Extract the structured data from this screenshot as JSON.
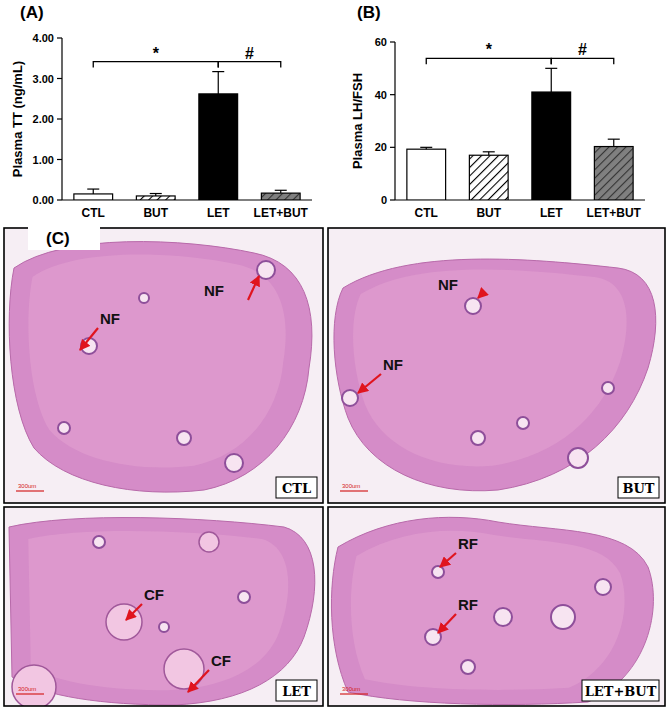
{
  "chart_data": [
    {
      "type": "bar",
      "title": "(A)",
      "y_label": "Plasma TT (ng/mL)",
      "categories": [
        "CTL",
        "BUT",
        "LET",
        "LET+BUT"
      ],
      "values": [
        0.15,
        0.1,
        2.62,
        0.17
      ],
      "errors": [
        0.12,
        0.06,
        0.55,
        0.07
      ],
      "colors": [
        "#ffffff",
        "#ffffff",
        "#000000",
        "#808080"
      ],
      "ylim": [
        0,
        4
      ],
      "yticks": [
        {
          "value": 0,
          "label": "0.00"
        },
        {
          "value": 1,
          "label": "1.00"
        },
        {
          "value": 2,
          "label": "2.00"
        },
        {
          "value": 3,
          "label": "3.00"
        },
        {
          "value": 4,
          "label": "4.00"
        }
      ],
      "annotations": [
        {
          "text": "*",
          "from": 0,
          "to": 2
        },
        {
          "text": "#",
          "from": 2,
          "to": 3
        }
      ]
    },
    {
      "type": "bar",
      "title": "(B)",
      "y_label": "Plasma LH/FSH",
      "categories": [
        "CTL",
        "BUT",
        "LET",
        "LET+BUT"
      ],
      "values": [
        19.3,
        17,
        41,
        20.3
      ],
      "errors": [
        0.7,
        1.3,
        9,
        2.8
      ],
      "colors": [
        "#ffffff",
        "#ffffff",
        "#000000",
        "#808080"
      ],
      "ylim": [
        0,
        60
      ],
      "yticks": [
        0,
        20,
        40,
        60
      ],
      "annotations": [
        {
          "text": "*",
          "from": 0,
          "to": 2
        },
        {
          "text": "#",
          "from": 2,
          "to": 3
        }
      ]
    }
  ],
  "panel_c": {
    "label": "(C)",
    "images": [
      {
        "group": "CTL",
        "scale_bar": "300um",
        "annotations": [
          "NF",
          "NF"
        ]
      },
      {
        "group": "BUT",
        "scale_bar": "300um",
        "annotations": [
          "NF",
          "NF"
        ]
      },
      {
        "group": "LET",
        "scale_bar": "300um",
        "annotations": [
          "CF",
          "CF"
        ]
      },
      {
        "group": "LET+BUT",
        "scale_bar": "300um",
        "annotations": [
          "RF",
          "RF"
        ]
      }
    ]
  }
}
